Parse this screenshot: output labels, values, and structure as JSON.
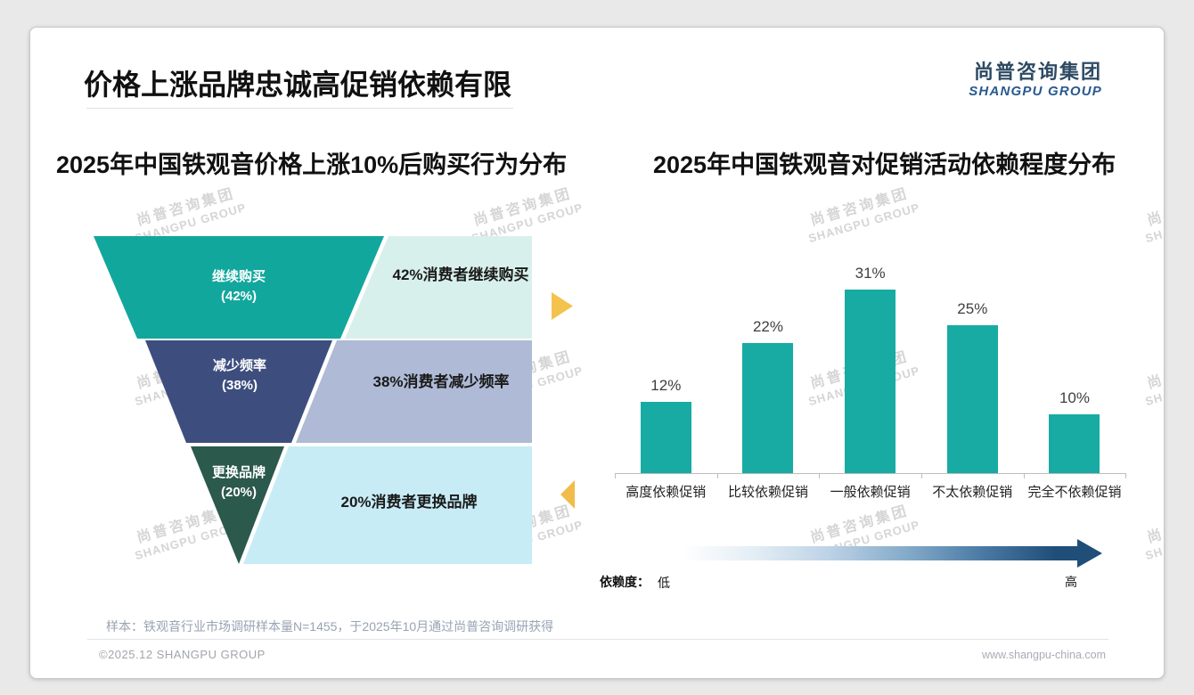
{
  "header": {
    "title": "价格上涨品牌忠诚高促销依赖有限",
    "logo_cn": "尚普咨询集团",
    "logo_en": "SHANGPU GROUP"
  },
  "watermark": {
    "line1": "尚普咨询集团",
    "line2": "SHANGPU GROUP"
  },
  "chart_data": [
    {
      "type": "funnel",
      "title": "2025年中国铁观音价格上涨10%后购买行为分布",
      "categories": [
        "继续购买",
        "减少频率",
        "更换品牌"
      ],
      "values": [
        42,
        38,
        20
      ],
      "pct_labels": [
        "(42%)",
        "(38%)",
        "(20%)"
      ],
      "annotations": [
        "42%消费者继续购买",
        "38%消费者减少频率",
        "20%消费者更换品牌"
      ],
      "colors": [
        "#12a79d",
        "#3d4e7e",
        "#2b594c"
      ],
      "annotation_bg": [
        "#d8f0eb",
        "#aebad6",
        "#c7ecf5"
      ]
    },
    {
      "type": "bar",
      "title": "2025年中国铁观音对促销活动依赖程度分布",
      "categories": [
        "高度依赖促销",
        "比较依赖促销",
        "一般依赖促销",
        "不太依赖促销",
        "完全不依赖促销"
      ],
      "values": [
        12,
        22,
        31,
        25,
        10
      ],
      "value_labels": [
        "12%",
        "22%",
        "31%",
        "25%",
        "10%"
      ],
      "ylim": [
        0,
        35
      ],
      "bar_color": "#17aba3",
      "legend_arrow": {
        "label": "依赖度：",
        "low": "低",
        "high": "高"
      }
    }
  ],
  "footer": {
    "sample_note": "样本：铁观音行业市场调研样本量N=1455，于2025年10月通过尚普咨询调研获得",
    "copyright": "©2025.12 SHANGPU GROUP",
    "website": "www.shangpu-china.com"
  }
}
